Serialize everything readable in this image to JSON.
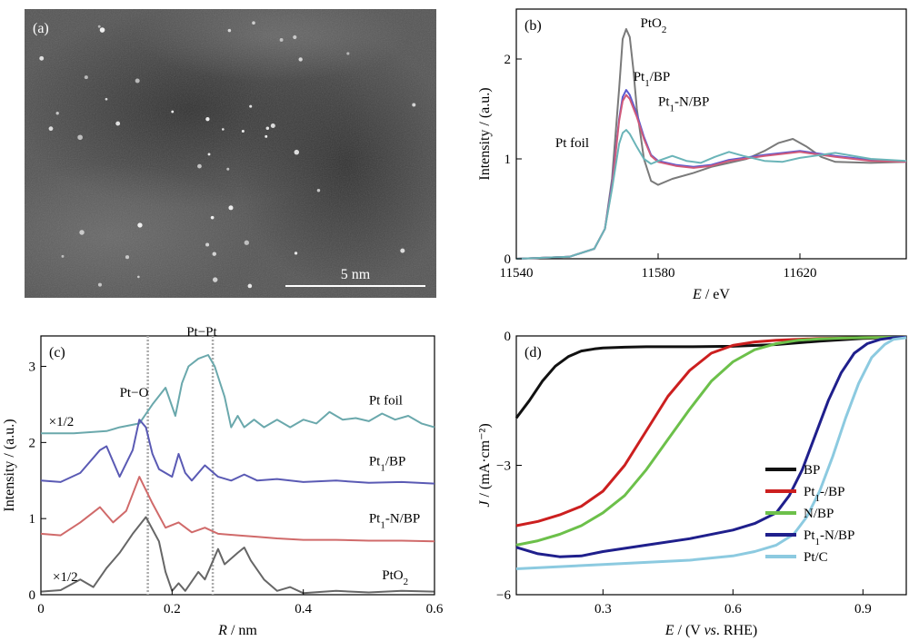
{
  "panel_a": {
    "label": "(a)",
    "scale_bar_label": "5 nm"
  },
  "chart_data": [
    {
      "panel": "(b)",
      "type": "line",
      "xlabel_italic": "E",
      "xlabel_rest": " / eV",
      "ylabel": "Intensity / (a.u.)",
      "xlim": [
        11540,
        11650
      ],
      "ylim": [
        0,
        2.5
      ],
      "xticks": [
        11540,
        11580,
        11620
      ],
      "yticks": [
        0,
        1,
        2
      ],
      "annotations": [
        {
          "text": "PtO",
          "sub": "2",
          "after": "",
          "x": 11575,
          "y": 2.32
        },
        {
          "text": "Pt",
          "sub": "1",
          "after": "/BP",
          "x": 11573,
          "y": 1.78
        },
        {
          "text": "Pt",
          "sub": "1",
          "after": "-N/BP",
          "x": 11580,
          "y": 1.53
        },
        {
          "text": "Pt foil",
          "sub": "",
          "after": "",
          "x": 11551,
          "y": 1.12
        }
      ],
      "series": [
        {
          "color": "#7a7a7a",
          "x": [
            11540,
            11555,
            11562,
            11565,
            11567,
            11569,
            11570,
            11571,
            11572,
            11573,
            11574,
            11576,
            11578,
            11580,
            11584,
            11590,
            11595,
            11600,
            11605,
            11610,
            11614,
            11618,
            11622,
            11626,
            11630,
            11640,
            11650
          ],
          "y": [
            0,
            0.02,
            0.1,
            0.3,
            0.8,
            1.7,
            2.2,
            2.3,
            2.22,
            1.9,
            1.5,
            1.0,
            0.78,
            0.74,
            0.8,
            0.86,
            0.92,
            0.96,
            1.0,
            1.08,
            1.16,
            1.2,
            1.12,
            1.02,
            0.97,
            0.96,
            0.97
          ]
        },
        {
          "color": "#5a5ad0",
          "x": [
            11540,
            11555,
            11562,
            11565,
            11567,
            11569,
            11570,
            11571,
            11572,
            11574,
            11576,
            11578,
            11580,
            11585,
            11590,
            11595,
            11600,
            11610,
            11620,
            11630,
            11640,
            11650
          ],
          "y": [
            0,
            0.02,
            0.1,
            0.3,
            0.75,
            1.4,
            1.62,
            1.69,
            1.64,
            1.45,
            1.22,
            1.04,
            0.98,
            0.94,
            0.92,
            0.94,
            0.99,
            1.04,
            1.08,
            1.03,
            0.99,
            0.97
          ]
        },
        {
          "color": "#d05a7a",
          "x": [
            11540,
            11555,
            11562,
            11565,
            11567,
            11569,
            11570,
            11571,
            11572,
            11574,
            11576,
            11578,
            11580,
            11585,
            11590,
            11595,
            11600,
            11610,
            11620,
            11630,
            11640,
            11650
          ],
          "y": [
            0,
            0.02,
            0.1,
            0.3,
            0.72,
            1.38,
            1.58,
            1.64,
            1.6,
            1.42,
            1.2,
            1.03,
            0.97,
            0.93,
            0.91,
            0.93,
            0.98,
            1.03,
            1.07,
            1.02,
            0.98,
            0.97
          ]
        },
        {
          "color": "#6ab4b8",
          "x": [
            11540,
            11555,
            11562,
            11565,
            11567,
            11569,
            11570,
            11571,
            11572,
            11574,
            11576,
            11578,
            11580,
            11584,
            11588,
            11592,
            11596,
            11600,
            11604,
            11610,
            11615,
            11620,
            11630,
            11640,
            11650
          ],
          "y": [
            0,
            0.02,
            0.1,
            0.3,
            0.7,
            1.15,
            1.26,
            1.29,
            1.25,
            1.12,
            1.0,
            0.95,
            0.98,
            1.03,
            0.98,
            0.96,
            1.02,
            1.07,
            1.03,
            0.98,
            0.97,
            1.01,
            1.06,
            1.0,
            0.98
          ]
        }
      ]
    },
    {
      "panel": "(c)",
      "type": "line",
      "xlabel_italic": "R",
      "xlabel_rest": " / nm",
      "ylabel": "Intensity / (a.u.)",
      "xlim": [
        0,
        0.6
      ],
      "ylim": [
        0,
        3.4
      ],
      "xticks": [
        0,
        0.2,
        0.4,
        0.6
      ],
      "yticks": [
        0,
        1,
        2,
        3
      ],
      "dashed_lines_x": [
        0.163,
        0.262
      ],
      "annotations": [
        {
          "text": "Pt−O",
          "sub": "",
          "after": "",
          "x": 0.12,
          "y": 2.6
        },
        {
          "text": "Pt−Pt",
          "sub": "",
          "after": "",
          "x": 0.222,
          "y": 3.4
        },
        {
          "text": "×1/2",
          "sub": "",
          "after": "",
          "x": 0.012,
          "y": 2.22
        },
        {
          "text": "×1/2",
          "sub": "",
          "after": "",
          "x": 0.018,
          "y": 0.18
        },
        {
          "text": "Pt foil",
          "sub": "",
          "after": "",
          "x": 0.5,
          "y": 2.5
        },
        {
          "text": "Pt",
          "sub": "1",
          "after": "/BP",
          "x": 0.5,
          "y": 1.7
        },
        {
          "text": "Pt",
          "sub": "1",
          "after": "-N/BP",
          "x": 0.5,
          "y": 0.95
        },
        {
          "text": "PtO",
          "sub": "2",
          "after": "",
          "x": 0.52,
          "y": 0.2
        }
      ],
      "series": [
        {
          "color": "#6aa8ac",
          "x": [
            0,
            0.05,
            0.1,
            0.12,
            0.15,
            0.17,
            0.19,
            0.205,
            0.215,
            0.225,
            0.24,
            0.255,
            0.265,
            0.28,
            0.29,
            0.3,
            0.31,
            0.325,
            0.34,
            0.36,
            0.38,
            0.4,
            0.42,
            0.44,
            0.46,
            0.48,
            0.5,
            0.52,
            0.54,
            0.56,
            0.58,
            0.6
          ],
          "y": [
            2.12,
            2.12,
            2.15,
            2.2,
            2.25,
            2.5,
            2.72,
            2.35,
            2.78,
            3.0,
            3.1,
            3.15,
            3.0,
            2.6,
            2.2,
            2.35,
            2.2,
            2.3,
            2.2,
            2.3,
            2.2,
            2.3,
            2.25,
            2.4,
            2.3,
            2.32,
            2.28,
            2.38,
            2.3,
            2.35,
            2.25,
            2.2
          ]
        },
        {
          "color": "#5a5ab4",
          "x": [
            0,
            0.03,
            0.06,
            0.09,
            0.1,
            0.12,
            0.14,
            0.15,
            0.16,
            0.17,
            0.18,
            0.2,
            0.21,
            0.22,
            0.23,
            0.25,
            0.27,
            0.29,
            0.31,
            0.33,
            0.36,
            0.4,
            0.45,
            0.5,
            0.55,
            0.6
          ],
          "y": [
            1.5,
            1.48,
            1.6,
            1.9,
            1.95,
            1.55,
            1.9,
            2.3,
            2.2,
            1.85,
            1.65,
            1.55,
            1.85,
            1.6,
            1.5,
            1.7,
            1.55,
            1.5,
            1.58,
            1.5,
            1.52,
            1.48,
            1.5,
            1.47,
            1.48,
            1.46
          ]
        },
        {
          "color": "#d06a6a",
          "x": [
            0,
            0.03,
            0.06,
            0.09,
            0.11,
            0.13,
            0.15,
            0.17,
            0.19,
            0.21,
            0.23,
            0.25,
            0.27,
            0.3,
            0.33,
            0.36,
            0.4,
            0.45,
            0.5,
            0.55,
            0.6
          ],
          "y": [
            0.8,
            0.78,
            0.95,
            1.15,
            0.95,
            1.1,
            1.55,
            1.2,
            0.88,
            0.95,
            0.82,
            0.88,
            0.8,
            0.78,
            0.76,
            0.74,
            0.72,
            0.72,
            0.71,
            0.71,
            0.7
          ]
        },
        {
          "color": "#666666",
          "x": [
            0,
            0.03,
            0.06,
            0.08,
            0.1,
            0.12,
            0.14,
            0.16,
            0.18,
            0.19,
            0.2,
            0.21,
            0.22,
            0.24,
            0.25,
            0.27,
            0.28,
            0.3,
            0.31,
            0.32,
            0.34,
            0.36,
            0.38,
            0.4,
            0.45,
            0.5,
            0.55,
            0.6
          ],
          "y": [
            0.04,
            0.06,
            0.2,
            0.1,
            0.35,
            0.55,
            0.8,
            1.02,
            0.7,
            0.3,
            0.05,
            0.15,
            0.05,
            0.3,
            0.2,
            0.6,
            0.4,
            0.55,
            0.62,
            0.45,
            0.2,
            0.05,
            0.1,
            0.02,
            0.05,
            0.03,
            0.05,
            0.04
          ]
        }
      ]
    },
    {
      "panel": "(d)",
      "type": "line",
      "xlabel_italic": "E",
      "xlabel_rest": " / (V ",
      "xlabel_italic2": "vs",
      "xlabel_rest2": ". RHE)",
      "ylabel_italic": "J",
      "ylabel_rest": " / (mA·cm⁻²)",
      "xlim": [
        0.1,
        1.0
      ],
      "ylim": [
        -6,
        0
      ],
      "xticks": [
        0.3,
        0.6,
        0.9
      ],
      "xtick_labels": [
        "0.3",
        "0.6",
        "0.9"
      ],
      "yticks": [
        0,
        -3,
        -6
      ],
      "ytick_labels": [
        "0",
        "−3",
        "−6"
      ],
      "legend": {
        "position": "lower-right",
        "entries": [
          {
            "text": "BP",
            "sub": "",
            "after": "",
            "color": "#111111"
          },
          {
            "text": "Pt",
            "sub": "1",
            "after": "-/BP",
            "color": "#cc1f1f"
          },
          {
            "text": "N/BP",
            "sub": "",
            "after": "",
            "color": "#6cc04a"
          },
          {
            "text": "Pt",
            "sub": "1",
            "after": "-N/BP",
            "color": "#1f1f8c"
          },
          {
            "text": "Pt/C",
            "sub": "",
            "after": "",
            "color": "#8ccae0"
          }
        ]
      },
      "series": [
        {
          "color": "#111111",
          "x": [
            0.1,
            0.13,
            0.16,
            0.19,
            0.22,
            0.25,
            0.28,
            0.3,
            0.35,
            0.4,
            0.5,
            0.6,
            0.7,
            0.8,
            0.9,
            1.0
          ],
          "y": [
            -1.9,
            -1.5,
            -1.05,
            -0.7,
            -0.48,
            -0.35,
            -0.3,
            -0.28,
            -0.26,
            -0.25,
            -0.25,
            -0.24,
            -0.2,
            -0.12,
            -0.06,
            -0.03
          ]
        },
        {
          "color": "#cc1f1f",
          "x": [
            0.1,
            0.15,
            0.2,
            0.25,
            0.3,
            0.35,
            0.4,
            0.45,
            0.5,
            0.55,
            0.6,
            0.65,
            0.7,
            0.75,
            0.8,
            0.9,
            1.0
          ],
          "y": [
            -4.4,
            -4.3,
            -4.15,
            -3.95,
            -3.6,
            -3.0,
            -2.2,
            -1.4,
            -0.8,
            -0.4,
            -0.22,
            -0.14,
            -0.1,
            -0.08,
            -0.06,
            -0.04,
            -0.03
          ]
        },
        {
          "color": "#6cc04a",
          "x": [
            0.1,
            0.15,
            0.2,
            0.25,
            0.3,
            0.35,
            0.4,
            0.45,
            0.5,
            0.55,
            0.6,
            0.65,
            0.7,
            0.75,
            0.8,
            0.85,
            0.9,
            1.0
          ],
          "y": [
            -4.85,
            -4.75,
            -4.6,
            -4.4,
            -4.1,
            -3.7,
            -3.1,
            -2.4,
            -1.7,
            -1.05,
            -0.6,
            -0.32,
            -0.18,
            -0.1,
            -0.07,
            -0.05,
            -0.04,
            -0.03
          ]
        },
        {
          "color": "#1f1f8c",
          "x": [
            0.1,
            0.15,
            0.2,
            0.25,
            0.3,
            0.4,
            0.5,
            0.6,
            0.65,
            0.7,
            0.73,
            0.76,
            0.79,
            0.82,
            0.85,
            0.88,
            0.91,
            0.94,
            0.97,
            1.0
          ],
          "y": [
            -4.9,
            -5.05,
            -5.12,
            -5.1,
            -5.0,
            -4.85,
            -4.7,
            -4.5,
            -4.35,
            -4.1,
            -3.7,
            -3.1,
            -2.3,
            -1.5,
            -0.85,
            -0.4,
            -0.18,
            -0.08,
            -0.04,
            -0.03
          ]
        },
        {
          "color": "#8ccae0",
          "x": [
            0.1,
            0.2,
            0.3,
            0.4,
            0.5,
            0.6,
            0.65,
            0.7,
            0.74,
            0.77,
            0.8,
            0.83,
            0.86,
            0.89,
            0.92,
            0.95,
            0.97,
            1.0
          ],
          "y": [
            -5.4,
            -5.35,
            -5.3,
            -5.25,
            -5.2,
            -5.1,
            -5.0,
            -4.85,
            -4.6,
            -4.2,
            -3.6,
            -2.8,
            -1.9,
            -1.1,
            -0.5,
            -0.2,
            -0.08,
            -0.04
          ]
        }
      ]
    }
  ]
}
